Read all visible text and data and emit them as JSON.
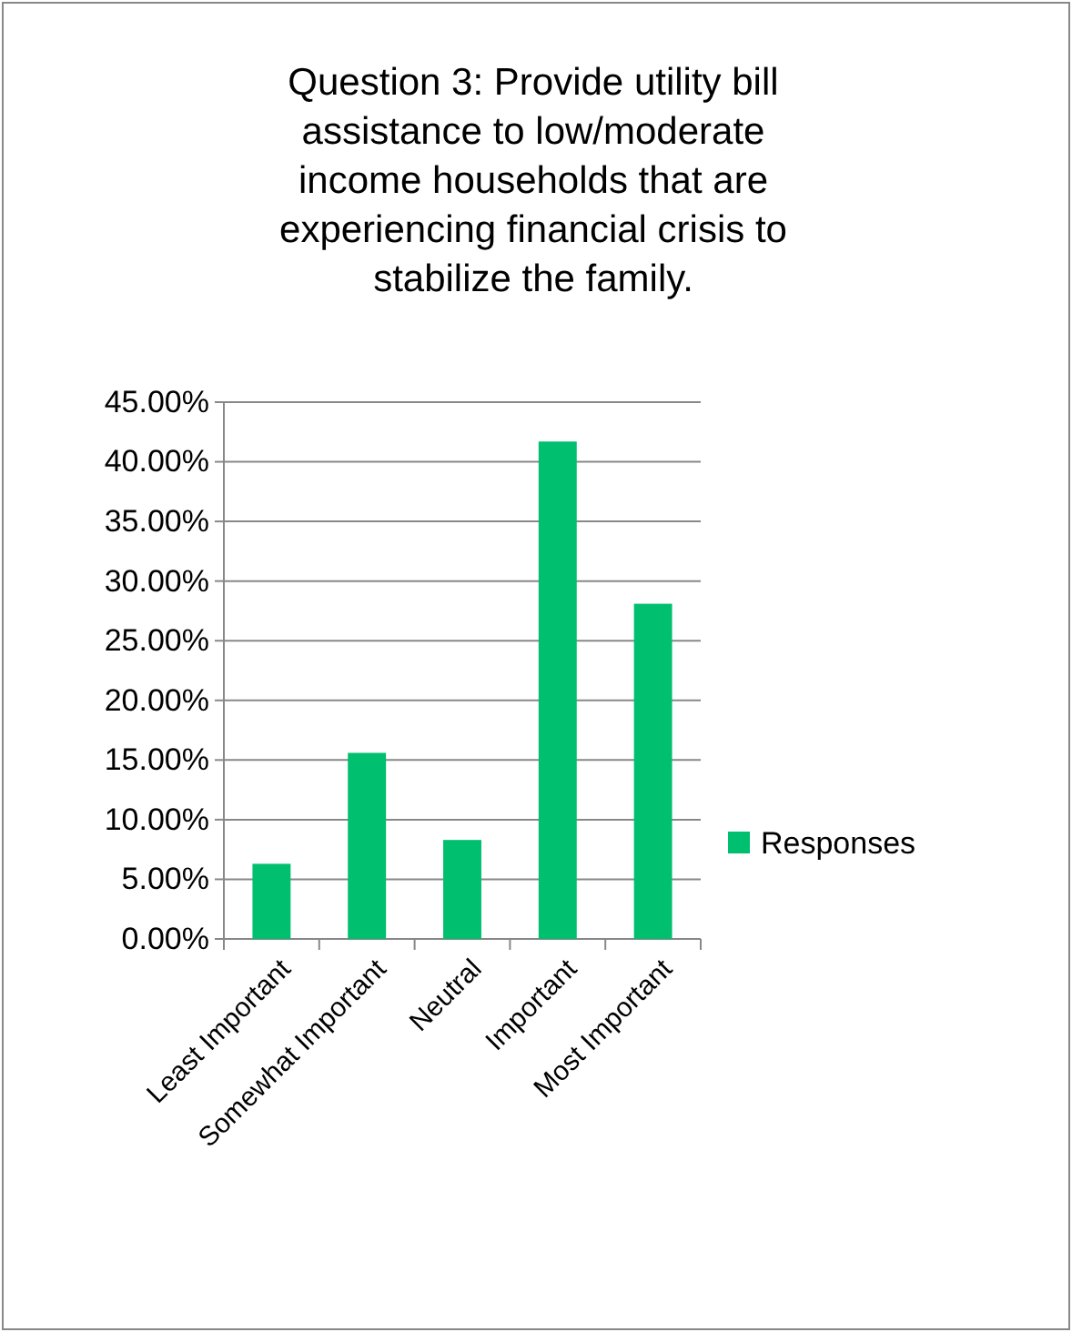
{
  "chart_data": {
    "type": "bar",
    "title": "Question 3: Provide utility bill assistance to low/moderate income households that are experiencing financial crisis to stabilize the family.",
    "categories": [
      "Least Important",
      "Somewhat Important",
      "Neutral",
      "Important",
      "Most Important"
    ],
    "series": [
      {
        "name": "Responses",
        "color": "#00bf6f",
        "values": [
          6.3,
          15.6,
          8.3,
          41.7,
          28.1
        ]
      }
    ],
    "ylim": [
      0,
      45
    ],
    "yticks": [
      {
        "value": 0,
        "label": "0.00%"
      },
      {
        "value": 5,
        "label": "5.00%"
      },
      {
        "value": 10,
        "label": "10.00%"
      },
      {
        "value": 15,
        "label": "15.00%"
      },
      {
        "value": 20,
        "label": "20.00%"
      },
      {
        "value": 25,
        "label": "25.00%"
      },
      {
        "value": 30,
        "label": "30.00%"
      },
      {
        "value": 35,
        "label": "35.00%"
      },
      {
        "value": 40,
        "label": "40.00%"
      },
      {
        "value": 45,
        "label": "45.00%"
      }
    ],
    "grid": "y",
    "legend": "right"
  }
}
